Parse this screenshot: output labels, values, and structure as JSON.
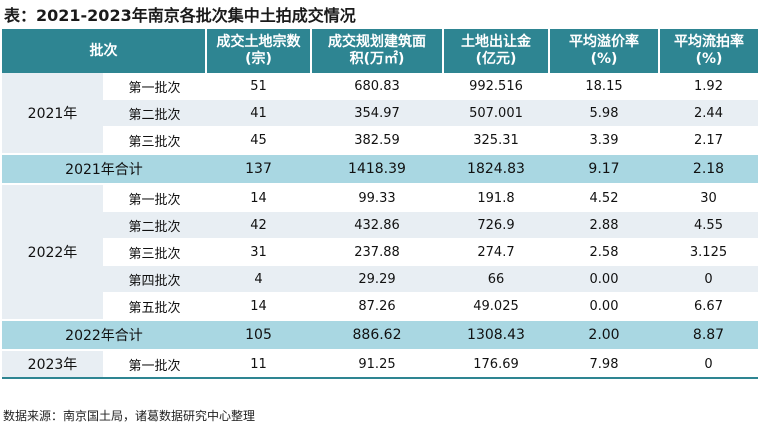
{
  "title": "表：2021-2023年南京各批次集中土拍成交情况",
  "header": {
    "batch": "批次",
    "land_count": [
      "成交土地宗数",
      "(宗)"
    ],
    "area": [
      "成交规划建筑面",
      "积(万㎡)"
    ],
    "sales": [
      "土地出让金",
      "(亿元)"
    ],
    "premium": [
      "平均溢价率",
      "(%)"
    ],
    "failed": [
      "平均流拍率",
      "(%)"
    ]
  },
  "years": {
    "y2021": "2021年",
    "y2022": "2022年",
    "y2023": "2023年"
  },
  "rows": [
    {
      "batch": "第一批次",
      "count": "51",
      "area": "680.83",
      "sales": "992.516",
      "premium": "18.15",
      "failed": "1.92"
    },
    {
      "batch": "第二批次",
      "count": "41",
      "area": "354.97",
      "sales": "507.001",
      "premium": "5.98",
      "failed": "2.44"
    },
    {
      "batch": "第三批次",
      "count": "45",
      "area": "382.59",
      "sales": "325.31",
      "premium": "3.39",
      "failed": "2.17"
    },
    {
      "batch": "第一批次",
      "count": "14",
      "area": "99.33",
      "sales": "191.8",
      "premium": "4.52",
      "failed": "30"
    },
    {
      "batch": "第二批次",
      "count": "42",
      "area": "432.86",
      "sales": "726.9",
      "premium": "2.88",
      "failed": "4.55"
    },
    {
      "batch": "第三批次",
      "count": "31",
      "area": "237.88",
      "sales": "274.7",
      "premium": "2.58",
      "failed": "3.125"
    },
    {
      "batch": "第四批次",
      "count": "4",
      "area": "29.29",
      "sales": "66",
      "premium": "0.00",
      "failed": "0"
    },
    {
      "batch": "第五批次",
      "count": "14",
      "area": "87.26",
      "sales": "49.025",
      "premium": "0.00",
      "failed": "6.67"
    },
    {
      "batch": "第一批次",
      "count": "11",
      "area": "91.25",
      "sales": "176.69",
      "premium": "7.98",
      "failed": "0"
    }
  ],
  "totals": [
    {
      "label": "2021年合计",
      "count": "137",
      "area": "1418.39",
      "sales": "1824.83",
      "premium": "9.17",
      "failed": "2.18"
    },
    {
      "label": "2022年合计",
      "count": "105",
      "area": "886.62",
      "sales": "1308.43",
      "premium": "2.00",
      "failed": "8.87"
    }
  ],
  "source": "数据来源：南京国土局，诸葛数据研究中心整理",
  "colors": {
    "header": "#2e8592",
    "subtotal": "#a9d7e2",
    "stripe": "#e8eef3"
  }
}
